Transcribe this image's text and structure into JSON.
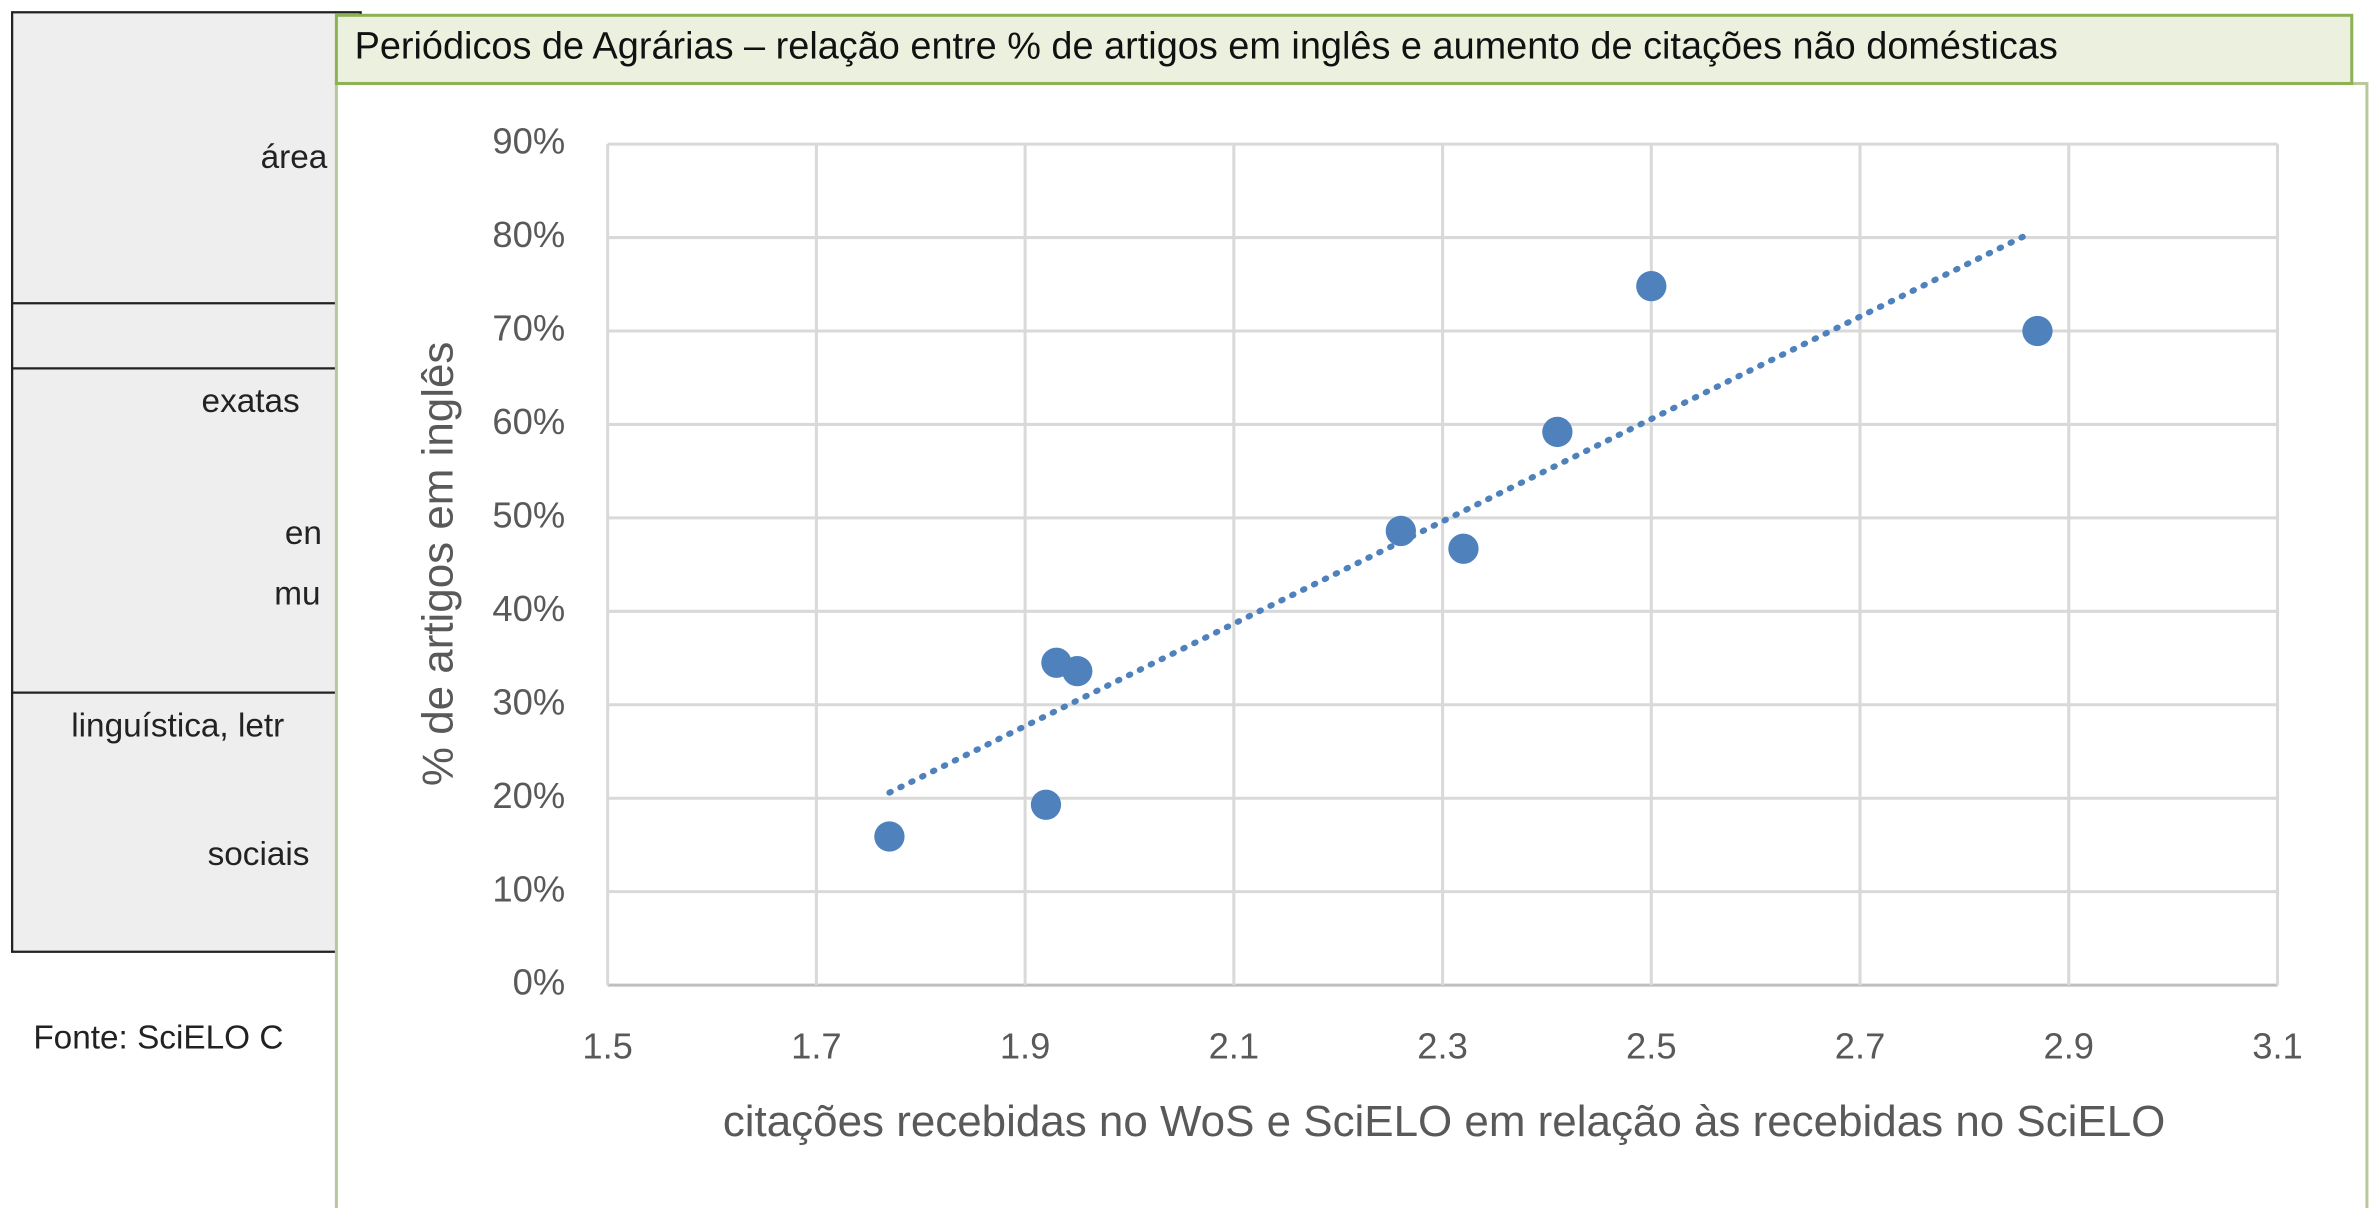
{
  "background_table": {
    "cells": [
      "área",
      "exatas",
      "en",
      "mu",
      "linguística, letr",
      "sociais"
    ],
    "footnote": "Fonte: SciELO C"
  },
  "chart_data": {
    "type": "scatter",
    "title": "Periódicos de Agrárias – relação entre % de artigos em inglês e aumento de citações não domésticas",
    "x_label": "citações recebidas no WoS e SciELO em relação às recebidas no SciELO",
    "y_label": "% de artigos em inglês",
    "x": [
      1.77,
      1.92,
      1.93,
      1.95,
      2.26,
      2.32,
      2.41,
      2.5,
      2.87
    ],
    "values": [
      15.9,
      19.3,
      34.5,
      33.6,
      48.6,
      46.7,
      59.2,
      74.8,
      70.0
    ],
    "color": "#4f81bd",
    "trendline": {
      "x": [
        1.77,
        2.86
      ],
      "y": [
        20.6,
        80.3
      ]
    },
    "xlim": [
      1.5,
      3.1
    ],
    "xticks": [
      1.5,
      1.7,
      1.9,
      2.1,
      2.3,
      2.5,
      2.7,
      2.9,
      3.1
    ],
    "ylim": [
      0,
      90
    ],
    "yticks": [
      {
        "value": 0,
        "label": "0%"
      },
      {
        "value": 10,
        "label": "10%"
      },
      {
        "value": 20,
        "label": "20%"
      },
      {
        "value": 30,
        "label": "30%"
      },
      {
        "value": 40,
        "label": "40%"
      },
      {
        "value": 50,
        "label": "50%"
      },
      {
        "value": 60,
        "label": "60%"
      },
      {
        "value": 70,
        "label": "70%"
      },
      {
        "value": 80,
        "label": "80%"
      },
      {
        "value": 90,
        "label": "90%"
      }
    ],
    "grid": true
  }
}
